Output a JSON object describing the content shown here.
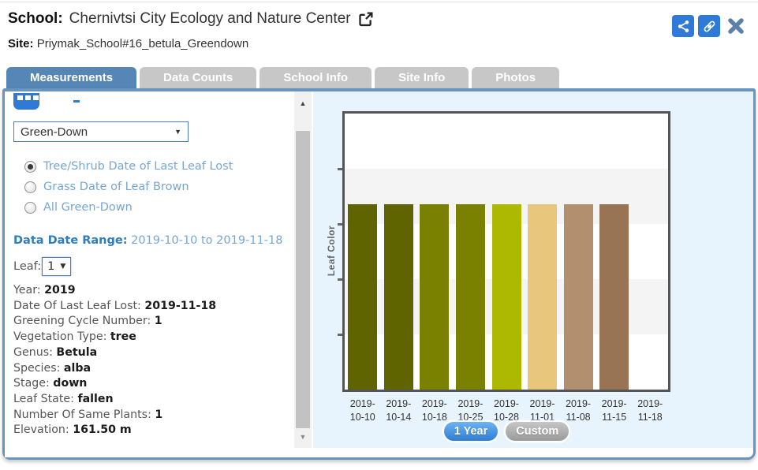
{
  "window": {
    "header": {
      "school_label": "School:",
      "school_name": "Chernivtsi City Ecology and Nature Center",
      "site_label": "Site:",
      "site_name": "Priymak_School#16_betula_Greendown"
    }
  },
  "tabs": [
    {
      "label": "Measurements",
      "active": true
    },
    {
      "label": "Data Counts",
      "active": false
    },
    {
      "label": "School Info",
      "active": false
    },
    {
      "label": "Site Info",
      "active": false
    },
    {
      "label": "Photos",
      "active": false
    }
  ],
  "sidebar": {
    "protocol_select": {
      "value": "Green-Down"
    },
    "radios": [
      {
        "label": "Tree/Shrub Date of Last Leaf Lost",
        "selected": true
      },
      {
        "label": "Grass Date of Leaf Brown",
        "selected": false
      },
      {
        "label": "All Green-Down",
        "selected": false
      }
    ],
    "date_range": {
      "label": "Data Date Range:",
      "value": "2019-10-10 to 2019-11-18"
    },
    "leaf_select": {
      "label": "Leaf:",
      "value": "1"
    },
    "details": [
      {
        "label": "Year:",
        "value": "2019"
      },
      {
        "label": "Date Of Last Leaf Lost:",
        "value": "2019-11-18"
      },
      {
        "label": "Greening Cycle Number:",
        "value": "1"
      },
      {
        "label": "Vegetation Type:",
        "value": "tree"
      },
      {
        "label": "Genus:",
        "value": "Betula"
      },
      {
        "label": "Species:",
        "value": "alba"
      },
      {
        "label": "Stage:",
        "value": "down"
      },
      {
        "label": "Leaf State:",
        "value": "fallen"
      },
      {
        "label": "Number Of Same Plants:",
        "value": "1"
      },
      {
        "label": "Elevation:",
        "value": "161.50 m"
      }
    ]
  },
  "chart_data": {
    "type": "bar",
    "title": "",
    "xlabel": "",
    "ylabel": "Leaf Color",
    "categories": [
      "2019-10-10",
      "2019-10-14",
      "2019-10-18",
      "2019-10-25",
      "2019-10-28",
      "2019-11-01",
      "2019-11-08",
      "2019-11-15",
      "2019-11-18"
    ],
    "series": [
      {
        "name": "Leaf Color",
        "values": [
          1,
          1,
          1,
          1,
          1,
          1,
          1,
          1,
          null
        ],
        "bar_colors": [
          "#5f6400",
          "#5f6400",
          "#7a8000",
          "#7a8000",
          "#adb800",
          "#e8c67c",
          "#b28f6e",
          "#997454",
          null
        ]
      }
    ],
    "bar_relative_height": 0.67,
    "legend": "none",
    "grid_bands": [
      "#ffffff",
      "#f4f4f4",
      "#ffffff",
      "#f4f4f4",
      "#ffffff"
    ]
  },
  "chart_buttons": [
    {
      "label": "1 Year",
      "style": "blue"
    },
    {
      "label": "Custom",
      "style": "gray"
    }
  ],
  "colors": {
    "accent_blue": "#2e7ad6",
    "tab_active": "#5586b5",
    "tab_inactive": "#c7c7c7",
    "panel_border": "#6a94c0",
    "chart_pane_bg": "#e8f4fd",
    "radio_label_blue": "#74a7d4",
    "date_range_label_blue": "#2f7cbf",
    "close_icon_color": "#5c80a8"
  }
}
